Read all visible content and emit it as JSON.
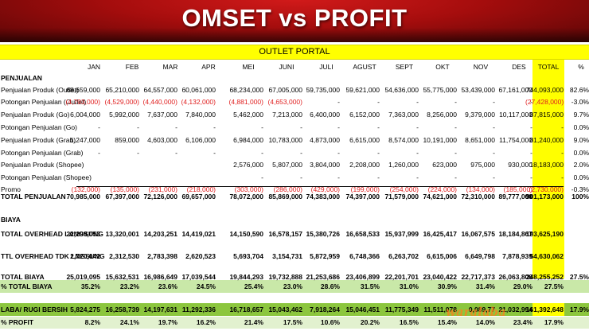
{
  "header": {
    "title": "OMSET vs PROFIT"
  },
  "subheader": {
    "title": "OUTLET PORTAL"
  },
  "columns": [
    "JAN",
    "FEB",
    "MAR",
    "APR",
    "MEI",
    "JUNI",
    "JULI",
    "AGUST",
    "SEPT",
    "OKT",
    "NOV",
    "DES",
    "TOTAL",
    "%"
  ],
  "rows": [
    {
      "label": "PENJUALAN",
      "values": [
        "",
        "",
        "",
        "",
        "",
        "",
        "",
        "",
        "",
        "",
        "",
        "",
        "",
        ""
      ],
      "bold": true
    },
    {
      "label": "Penjualan Produk (Outlet)",
      "values": [
        "68,659,000",
        "65,210,000",
        "64,557,000",
        "60,061,000",
        "68,234,000",
        "67,005,000",
        "59,735,000",
        "59,621,000",
        "54,636,000",
        "55,775,000",
        "53,439,000",
        "67,161,000",
        "744,093,000",
        "82.6%"
      ]
    },
    {
      "label": "Potongan Penjualan (Outlet)",
      "values": [
        "(4,793,000)",
        "(4,529,000)",
        "(4,440,000)",
        "(4,132,000)",
        "(4,881,000)",
        "(4,653,000)",
        "-",
        "-",
        "-",
        "-",
        "-",
        "-",
        "(27,428,000)",
        "-3.0%"
      ]
    },
    {
      "label": "Penjualan Produk (Go)",
      "values": [
        "6,004,000",
        "5,992,000",
        "7,637,000",
        "7,840,000",
        "5,462,000",
        "7,213,000",
        "6,400,000",
        "6,152,000",
        "7,363,000",
        "8,256,000",
        "9,379,000",
        "10,117,000",
        "87,815,000",
        "9.7%"
      ]
    },
    {
      "label": "Potongan Penjualan (Go)",
      "values": [
        "-",
        "-",
        "-",
        "-",
        "-",
        "-",
        "-",
        "-",
        "-",
        "-",
        "-",
        "-",
        "-",
        "0.0%"
      ]
    },
    {
      "label": "Penjualan Produk (Grab)",
      "values": [
        "1,247,000",
        "859,000",
        "4,603,000",
        "6,106,000",
        "6,984,000",
        "10,783,000",
        "4,873,000",
        "6,615,000",
        "8,574,000",
        "10,191,000",
        "8,651,000",
        "11,754,000",
        "81,240,000",
        "9.0%"
      ]
    },
    {
      "label": "Potongan Penjualan (Grab)",
      "values": [
        "-",
        "-",
        "-",
        "-",
        "-",
        "-",
        "-",
        "-",
        "-",
        "-",
        "-",
        "-",
        "-",
        "0.0%"
      ]
    },
    {
      "label": "Penjualan Produk (Shopee)",
      "values": [
        "",
        "",
        "",
        "",
        "2,576,000",
        "5,807,000",
        "3,804,000",
        "2,208,000",
        "1,260,000",
        "623,000",
        "975,000",
        "930,000",
        "18,183,000",
        "2.0%"
      ]
    },
    {
      "label": "Potongan Penjualan (Shopee)",
      "values": [
        "",
        "",
        "",
        "",
        "-",
        "-",
        "-",
        "-",
        "-",
        "-",
        "-",
        "-",
        "-",
        "0.0%"
      ]
    },
    {
      "label": "Promo",
      "values": [
        "(132,000)",
        "(135,000)",
        "(231,000)",
        "(218,000)",
        "(303,000)",
        "(286,000)",
        "(429,000)",
        "(199,000)",
        "(254,000)",
        "(224,000)",
        "(134,000)",
        "(185,000)",
        "(2,730,000)",
        "-0.3%"
      ]
    },
    {
      "label": "TOTAL PENJUALAN",
      "values": [
        "70,985,000",
        "67,397,000",
        "72,126,000",
        "69,657,000",
        "78,072,000",
        "85,869,000",
        "74,383,000",
        "74,397,000",
        "71,579,000",
        "74,621,000",
        "72,310,000",
        "89,777,000",
        "901,173,000",
        "100%"
      ],
      "bold": true
    },
    {
      "label": "BIAYA",
      "values": [
        "",
        "",
        "",
        "",
        "",
        "",
        "",
        "",
        "",
        "",
        "",
        "",
        "",
        ""
      ],
      "bold": true
    },
    {
      "label": "TOTAL OVERHEAD LANGSUNG",
      "values": [
        "22,299,053",
        "13,320,001",
        "14,203,251",
        "14,419,021",
        "14,150,590",
        "16,578,157",
        "15,380,726",
        "16,658,533",
        "15,937,999",
        "16,425,417",
        "16,067,575",
        "18,184,867",
        "193,625,190",
        ""
      ],
      "bold": true
    },
    {
      "label": "TTL OVERHEAD TDK LNGSUNG",
      "values": [
        "2,720,042",
        "2,312,530",
        "2,783,398",
        "2,620,523",
        "5,693,704",
        "3,154,731",
        "5,872,959",
        "6,748,366",
        "6,263,702",
        "6,615,006",
        "6,649,798",
        "7,878,939",
        "54,630,062",
        ""
      ],
      "bold": true
    },
    {
      "label": "TOTAL BIAYA",
      "values": [
        "25,019,095",
        "15,632,531",
        "16,986,649",
        "17,039,544",
        "19,844,293",
        "19,732,888",
        "21,253,686",
        "23,406,899",
        "22,201,701",
        "23,040,422",
        "22,717,373",
        "26,063,806",
        "248,255,252",
        "27.5%"
      ],
      "bold": true
    },
    {
      "label": "% TOTAL BIAYA",
      "values": [
        "35.2%",
        "23.2%",
        "23.6%",
        "24.5%",
        "25.4%",
        "23.0%",
        "28.6%",
        "31.5%",
        "31.0%",
        "30.9%",
        "31.4%",
        "29.0%",
        "27.5%",
        ""
      ],
      "bold": true
    },
    {
      "label": "LABA/ RUGI BERSIH",
      "values": [
        "5,824,275",
        "16,258,739",
        "14,197,631",
        "11,292,336",
        "16,718,657",
        "15,043,462",
        "7,918,264",
        "15,046,451",
        "11,775,349",
        "11,511,078",
        "0,089,77",
        "21,032,994",
        "161,392,648",
        "17.9%"
      ],
      "bold": true
    },
    {
      "label": "% PROFIT",
      "values": [
        "8.2%",
        "24.1%",
        "19.7%",
        "16.2%",
        "21.4%",
        "17.5%",
        "10.6%",
        "20.2%",
        "16.5%",
        "15.4%",
        "14.0%",
        "23.4%",
        "17.9%",
        ""
      ],
      "bold": true
    }
  ],
  "watermark": {
    "text": "waralaba"
  }
}
